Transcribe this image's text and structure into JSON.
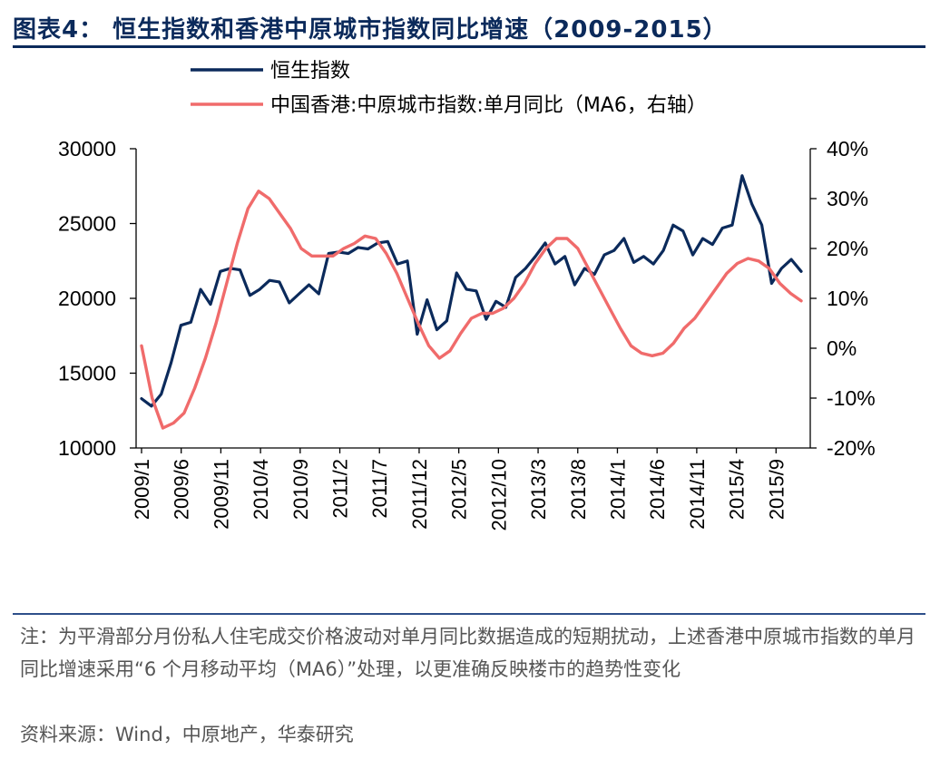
{
  "title": "图表4： 恒生指数和香港中原城市指数同比增速（2009-2015）",
  "note": "注：为平滑部分月份私人住宅成交价格波动对单月同比数据造成的短期扰动，上述香港中原城市指数的单月同比增速采用“6 个月移动平均（MA6）”处理，以更准确反映楼市的趋势性变化",
  "source": "资料来源：Wind，中原地产，华泰研究",
  "colors": {
    "hsi": "#0b2a5b",
    "ccl": "#f06b6b",
    "title": "#0b2a5b"
  },
  "chart_data": {
    "type": "line",
    "title": "恒生指数和香港中原城市指数同比增速（2009-2015）",
    "xlabel": "",
    "ylabel_left": "",
    "ylabel_right": "",
    "x_tick_labels": [
      "2009/1",
      "2009/6",
      "2009/11",
      "2010/4",
      "2010/9",
      "2011/2",
      "2011/7",
      "2011/12",
      "2012/5",
      "2012/10",
      "2013/3",
      "2013/8",
      "2014/1",
      "2014/6",
      "2014/11",
      "2015/4",
      "2015/9"
    ],
    "left_axis": {
      "min": 10000,
      "max": 30000,
      "ticks": [
        "10000",
        "15000",
        "20000",
        "25000",
        "30000"
      ],
      "tick_values": [
        10000,
        15000,
        20000,
        25000,
        30000
      ]
    },
    "right_axis": {
      "min": -20,
      "max": 40,
      "ticks": [
        "-20%",
        "-10%",
        "0%",
        "10%",
        "20%",
        "30%",
        "40%"
      ],
      "tick_values": [
        -20,
        -10,
        0,
        10,
        20,
        30,
        40
      ]
    },
    "legend_position": "top-center",
    "series": [
      {
        "name": "恒生指数",
        "axis": "left",
        "color": "#0b2a5b",
        "values": [
          13300,
          12800,
          13600,
          15700,
          18200,
          18400,
          20600,
          19600,
          21800,
          22000,
          21900,
          20200,
          20600,
          21200,
          21100,
          19700,
          20300,
          20900,
          20300,
          23000,
          23100,
          23000,
          23400,
          23300,
          23700,
          23800,
          22300,
          22500,
          17600,
          19900,
          17900,
          18500,
          21700,
          20600,
          20500,
          18600,
          19800,
          19400,
          21400,
          22000,
          22800,
          23700,
          22300,
          22800,
          20900,
          22000,
          21600,
          22900,
          23200,
          24000,
          22400,
          22800,
          22300,
          23200,
          24900,
          24500,
          22900,
          24000,
          23600,
          24700,
          24900,
          28200,
          26300,
          24900,
          21000,
          22000,
          22600,
          21800
        ]
      },
      {
        "name": "中国香港:中原城市指数:单月同比（MA6，右轴）",
        "axis": "right",
        "color": "#f06b6b",
        "values": [
          0.5,
          -10,
          -16,
          -15,
          -13,
          -8,
          -2,
          5,
          13,
          21,
          28,
          31.5,
          30,
          27,
          24,
          20,
          18.5,
          18.5,
          18.5,
          20,
          21,
          22.5,
          22,
          19,
          15,
          10,
          5,
          0.5,
          -2,
          -0.5,
          3,
          6,
          7,
          7,
          8,
          10,
          13,
          17,
          20,
          22,
          22,
          20,
          16,
          12,
          8,
          4,
          0.5,
          -1,
          -1.5,
          -1,
          1,
          4,
          6,
          9,
          12,
          15,
          17,
          18,
          17.5,
          16,
          13,
          11,
          9.5
        ]
      }
    ]
  }
}
